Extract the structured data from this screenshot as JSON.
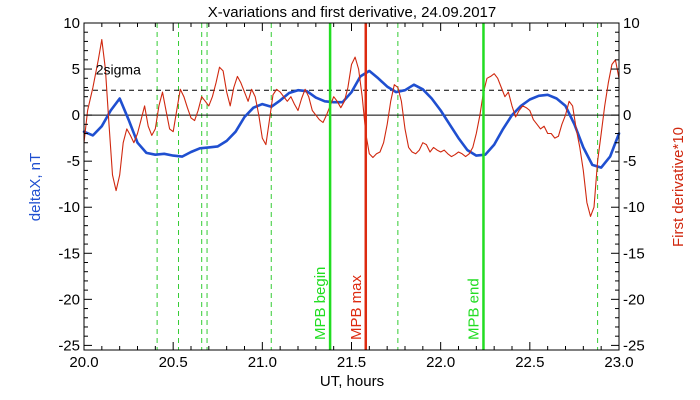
{
  "chart_data": {
    "type": "line",
    "title": "X-variations and first derivative, 24.09.2017",
    "xlabel": "UT, hours",
    "ylabel_left": "deltaX, nT",
    "ylabel_right": "First derivative*10",
    "xlim": [
      20.0,
      23.0
    ],
    "ylim": [
      -25.5,
      10
    ],
    "x_ticks": [
      20.0,
      20.5,
      21.0,
      21.5,
      22.0,
      22.5,
      23.0
    ],
    "x_tick_labels": [
      "20.0",
      "20.5",
      "21.0",
      "21.5",
      "22.0",
      "22.5",
      "23.0"
    ],
    "y_ticks": [
      10,
      5,
      0,
      -5,
      -10,
      -15,
      -20,
      -25
    ],
    "y_tick_labels": [
      "10",
      "5",
      "0",
      "-5",
      "-10",
      "-15",
      "-20",
      "-25"
    ],
    "grid": false,
    "series": [
      {
        "name": "deltaX, nT",
        "color": "#1f4fd0",
        "axis": "left",
        "x": [
          20.0,
          20.05,
          20.1,
          20.15,
          20.2,
          20.25,
          20.3,
          20.35,
          20.4,
          20.45,
          20.5,
          20.55,
          20.6,
          20.65,
          20.7,
          20.75,
          20.8,
          20.85,
          20.9,
          20.95,
          21.0,
          21.05,
          21.1,
          21.15,
          21.2,
          21.25,
          21.3,
          21.35,
          21.4,
          21.45,
          21.5,
          21.55,
          21.6,
          21.65,
          21.7,
          21.75,
          21.8,
          21.85,
          21.9,
          21.95,
          22.0,
          22.05,
          22.1,
          22.15,
          22.2,
          22.25,
          22.3,
          22.35,
          22.4,
          22.45,
          22.5,
          22.55,
          22.6,
          22.65,
          22.7,
          22.75,
          22.8,
          22.85,
          22.9,
          22.95,
          23.0
        ],
        "y": [
          -1.8,
          -2.2,
          -1.2,
          0.5,
          1.8,
          -0.5,
          -3.0,
          -4.1,
          -4.3,
          -4.2,
          -4.4,
          -4.5,
          -4.0,
          -3.6,
          -3.5,
          -3.4,
          -2.8,
          -1.8,
          -0.2,
          0.8,
          1.2,
          0.9,
          1.6,
          2.4,
          2.7,
          2.6,
          1.9,
          1.5,
          1.4,
          1.4,
          2.5,
          4.2,
          4.8,
          4.0,
          3.1,
          2.5,
          2.7,
          3.3,
          2.8,
          1.8,
          0.5,
          -1.0,
          -2.5,
          -3.8,
          -4.4,
          -4.3,
          -3.2,
          -1.5,
          0.0,
          1.0,
          1.7,
          2.1,
          2.2,
          1.8,
          1.0,
          -1.0,
          -3.5,
          -5.4,
          -5.7,
          -4.5,
          -2.0
        ]
      },
      {
        "name": "First derivative*10",
        "color": "#d0280f",
        "axis": "right",
        "x": [
          20.0,
          20.02,
          20.05,
          20.08,
          20.1,
          20.12,
          20.14,
          20.16,
          20.18,
          20.2,
          20.22,
          20.24,
          20.26,
          20.28,
          20.3,
          20.32,
          20.34,
          20.36,
          20.38,
          20.4,
          20.42,
          20.44,
          20.46,
          20.48,
          20.5,
          20.52,
          20.54,
          20.56,
          20.58,
          20.6,
          20.62,
          20.64,
          20.66,
          20.68,
          20.7,
          20.72,
          20.74,
          20.76,
          20.78,
          20.8,
          20.82,
          20.84,
          20.86,
          20.88,
          20.9,
          20.92,
          20.94,
          20.96,
          20.98,
          21.0,
          21.02,
          21.04,
          21.06,
          21.08,
          21.1,
          21.12,
          21.14,
          21.16,
          21.18,
          21.2,
          21.22,
          21.24,
          21.26,
          21.28,
          21.3,
          21.32,
          21.34,
          21.36,
          21.38,
          21.4,
          21.42,
          21.44,
          21.46,
          21.48,
          21.5,
          21.52,
          21.54,
          21.56,
          21.58,
          21.6,
          21.62,
          21.64,
          21.66,
          21.68,
          21.7,
          21.72,
          21.74,
          21.76,
          21.78,
          21.8,
          21.82,
          21.84,
          21.86,
          21.88,
          21.9,
          21.92,
          21.94,
          21.96,
          21.98,
          22.0,
          22.02,
          22.04,
          22.06,
          22.08,
          22.1,
          22.12,
          22.14,
          22.16,
          22.18,
          22.2,
          22.22,
          22.24,
          22.26,
          22.28,
          22.3,
          22.32,
          22.34,
          22.36,
          22.38,
          22.4,
          22.42,
          22.44,
          22.46,
          22.48,
          22.5,
          22.52,
          22.54,
          22.56,
          22.58,
          22.6,
          22.62,
          22.64,
          22.66,
          22.68,
          22.7,
          22.72,
          22.74,
          22.76,
          22.78,
          22.8,
          22.82,
          22.84,
          22.86,
          22.88,
          22.9,
          22.92,
          22.94,
          22.96,
          22.98,
          23.0
        ],
        "y": [
          -3.0,
          0.5,
          3.0,
          6.0,
          8.2,
          5.0,
          -1.0,
          -6.5,
          -8.2,
          -6.5,
          -3.0,
          -1.5,
          -2.2,
          -3.0,
          -2.0,
          -0.5,
          1.0,
          -1.2,
          -2.2,
          -1.5,
          1.0,
          2.5,
          0.5,
          -1.5,
          -1.8,
          0.5,
          2.8,
          2.0,
          0.8,
          -0.3,
          -0.6,
          0.5,
          2.0,
          1.5,
          1.0,
          2.0,
          3.5,
          5.2,
          4.8,
          2.5,
          1.0,
          3.0,
          4.2,
          3.5,
          2.5,
          1.5,
          2.8,
          2.0,
          0.0,
          -2.5,
          -3.2,
          -0.5,
          2.2,
          2.8,
          2.5,
          2.0,
          1.5,
          2.0,
          1.2,
          0.5,
          1.8,
          2.8,
          2.0,
          0.5,
          0.0,
          -0.5,
          -0.8,
          0.0,
          1.0,
          2.0,
          1.5,
          0.8,
          1.5,
          3.0,
          5.5,
          6.3,
          5.0,
          2.0,
          -2.0,
          -4.2,
          -4.6,
          -4.2,
          -4.0,
          -3.0,
          -1.0,
          1.5,
          3.3,
          3.0,
          1.5,
          -1.5,
          -3.5,
          -4.0,
          -4.2,
          -3.8,
          -3.0,
          -3.2,
          -4.0,
          -3.5,
          -3.8,
          -4.0,
          -3.8,
          -4.2,
          -4.5,
          -4.3,
          -4.0,
          -4.2,
          -4.5,
          -4.2,
          -3.5,
          -2.0,
          0.0,
          2.5,
          4.0,
          4.2,
          4.5,
          4.0,
          3.0,
          2.0,
          2.5,
          1.0,
          -0.2,
          0.5,
          1.0,
          0.8,
          0.5,
          -0.5,
          -1.0,
          -1.5,
          -1.2,
          -2.0,
          -2.0,
          -2.5,
          -2.3,
          -1.0,
          0.0,
          1.5,
          1.0,
          -1.5,
          -3.5,
          -6.0,
          -9.5,
          -11.0,
          -10.0,
          -5.0,
          -2.0,
          1.0,
          3.5,
          5.5,
          6.0,
          4.0
        ]
      },
      {
        "name": "2sigma",
        "color": "#000000",
        "axis": "left",
        "style": "dashed",
        "value": 2.7
      },
      {
        "name": "zero line",
        "color": "#000000",
        "axis": "left",
        "style": "solid",
        "value": 0
      }
    ],
    "vertical_markers": {
      "dashed_green": [
        20.41,
        20.53,
        20.66,
        20.69,
        21.05,
        21.76,
        22.88
      ],
      "labeled": [
        {
          "x": 21.38,
          "label": "MPB begin",
          "color": "#22dd22"
        },
        {
          "x": 21.58,
          "label": "MPB max",
          "color": "#dd2a10"
        },
        {
          "x": 22.24,
          "label": "MPB end",
          "color": "#22dd22"
        }
      ]
    },
    "annotations": [
      {
        "text": "2sigma",
        "x": 20.15,
        "y": 4.5
      }
    ]
  }
}
